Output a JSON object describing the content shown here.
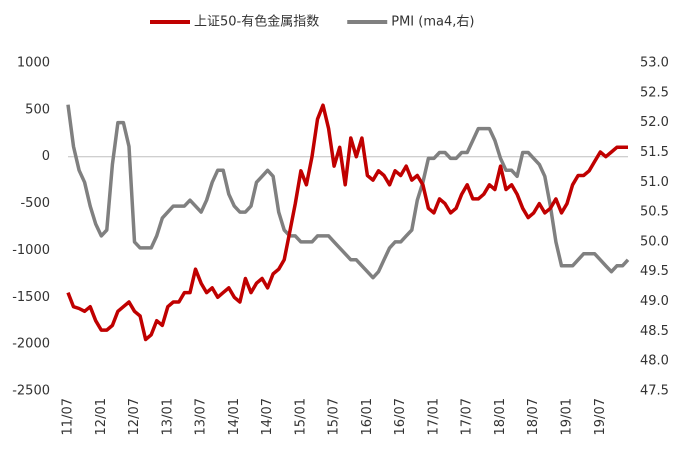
{
  "chart_data": {
    "type": "line",
    "categories": [
      "11/07",
      null,
      null,
      null,
      null,
      null,
      "12/01",
      null,
      null,
      null,
      null,
      null,
      "12/07",
      null,
      null,
      null,
      null,
      null,
      "13/01",
      null,
      null,
      null,
      null,
      null,
      "13/07",
      null,
      null,
      null,
      null,
      null,
      "14/01",
      null,
      null,
      null,
      null,
      null,
      "14/07",
      null,
      null,
      null,
      null,
      null,
      "15/01",
      null,
      null,
      null,
      null,
      null,
      "15/07",
      null,
      null,
      null,
      null,
      null,
      "16/01",
      null,
      null,
      null,
      null,
      null,
      "16/07",
      null,
      null,
      null,
      null,
      null,
      "17/01",
      null,
      null,
      null,
      null,
      null,
      "17/07",
      null,
      null,
      null,
      null,
      null,
      "18/01",
      null,
      null,
      null,
      null,
      null,
      "18/07",
      null,
      null,
      null,
      null,
      null,
      "19/01",
      null,
      null,
      null,
      null,
      null,
      "19/07",
      null,
      null,
      null,
      null,
      null
    ],
    "series": [
      {
        "name": "上证50-有色金属指数",
        "color": "#c00000",
        "axis": "y",
        "values": [
          -1450,
          -1600,
          -1620,
          -1650,
          -1600,
          -1750,
          -1850,
          -1850,
          -1800,
          -1650,
          -1600,
          -1550,
          -1650,
          -1700,
          -1950,
          -1900,
          -1750,
          -1800,
          -1600,
          -1550,
          -1550,
          -1450,
          -1450,
          -1200,
          -1350,
          -1450,
          -1400,
          -1500,
          -1450,
          -1400,
          -1500,
          -1550,
          -1300,
          -1450,
          -1350,
          -1300,
          -1400,
          -1250,
          -1200,
          -1100,
          -800,
          -500,
          -150,
          -300,
          0,
          400,
          550,
          300,
          -100,
          100,
          -300,
          200,
          0,
          200,
          -200,
          -250,
          -150,
          -200,
          -300,
          -150,
          -200,
          -100,
          -250,
          -200,
          -300,
          -550,
          -600,
          -450,
          -500,
          -600,
          -550,
          -400,
          -300,
          -450,
          -450,
          -400,
          -300,
          -350,
          -100,
          -350,
          -300,
          -400,
          -550,
          -650,
          -600,
          -500,
          -600,
          -550,
          -450,
          -600,
          -500,
          -300,
          -200,
          -200,
          -150,
          -50,
          50,
          0,
          50,
          100,
          100,
          100
        ]
      },
      {
        "name": "PMI (ma4,右)",
        "color": "#808080",
        "axis": "y2",
        "values": [
          52.3,
          51.6,
          51.2,
          51.0,
          50.6,
          50.3,
          50.1,
          50.2,
          51.3,
          52.0,
          52.0,
          51.6,
          50.0,
          49.9,
          49.9,
          49.9,
          50.1,
          50.4,
          50.5,
          50.6,
          50.6,
          50.6,
          50.7,
          50.6,
          50.5,
          50.7,
          51.0,
          51.2,
          51.2,
          50.8,
          50.6,
          50.5,
          50.5,
          50.6,
          51.0,
          51.1,
          51.2,
          51.1,
          50.5,
          50.2,
          50.1,
          50.1,
          50.0,
          50.0,
          50.0,
          50.1,
          50.1,
          50.1,
          50.0,
          49.9,
          49.8,
          49.7,
          49.7,
          49.6,
          49.5,
          49.4,
          49.5,
          49.7,
          49.9,
          50.0,
          50.0,
          50.1,
          50.2,
          50.7,
          51.0,
          51.4,
          51.4,
          51.5,
          51.5,
          51.4,
          51.4,
          51.5,
          51.5,
          51.7,
          51.9,
          51.9,
          51.9,
          51.7,
          51.4,
          51.2,
          51.2,
          51.1,
          51.5,
          51.5,
          51.4,
          51.3,
          51.1,
          50.6,
          50.0,
          49.6,
          49.6,
          49.6,
          49.7,
          49.8,
          49.8,
          49.8,
          49.7,
          49.6,
          49.5,
          49.6,
          49.6,
          49.7
        ]
      }
    ],
    "ylim": [
      -2500,
      1000
    ],
    "yticks": [
      1000,
      500,
      0,
      -500,
      -1000,
      -1500,
      -2000,
      -2500
    ],
    "y2lim": [
      47.5,
      53.0
    ],
    "y2ticks": [
      {
        "value": 53.0,
        "label": "53.0"
      },
      {
        "value": 52.5,
        "label": "52.5"
      },
      {
        "value": 52.0,
        "label": "52.0"
      },
      {
        "value": 51.5,
        "label": "51.5"
      },
      {
        "value": 51.0,
        "label": "51.0"
      },
      {
        "value": 50.5,
        "label": "50.5"
      },
      {
        "value": 50.0,
        "label": "50.0"
      },
      {
        "value": 49.5,
        "label": "49.5"
      },
      {
        "value": 49.0,
        "label": "49.0"
      },
      {
        "value": 48.5,
        "label": "48.5"
      },
      {
        "value": 48.0,
        "label": "48.0"
      },
      {
        "value": 47.5,
        "label": "47.5"
      }
    ],
    "legend": "top"
  }
}
